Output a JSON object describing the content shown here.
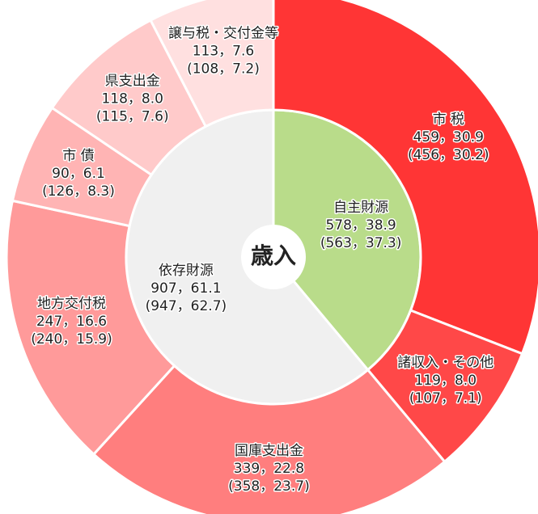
{
  "chart_data": {
    "type": "donut",
    "center_label": "歳入",
    "rings": [
      {
        "categories": [
          "自主財源",
          "依存財源"
        ],
        "values": [
          578,
          907
        ],
        "value_labels": [
          "578，38.9",
          "907，61.1"
        ],
        "prev_labels": [
          "(563，37.3)",
          "(947，62.7)"
        ],
        "colors": [
          "#b9dc8a",
          "#f0f0f0"
        ]
      },
      {
        "categories": [
          "市 税",
          "諸収入・その他",
          "国庫支出金",
          "地方交付税",
          "市 債",
          "県支出金",
          "譲与税・交付金等"
        ],
        "values": [
          459,
          119,
          339,
          247,
          90,
          118,
          113
        ],
        "value_labels": [
          "459，30.9",
          "119，8.0",
          "339，22.8",
          "247，16.6",
          "90，6.1",
          "118，8.0",
          "113，7.6"
        ],
        "prev_labels": [
          "(456，30.2)",
          "(107，7.1)",
          "(358，23.7)",
          "(240，15.9)",
          "(126，8.3)",
          "(115，7.6)",
          "(108，7.2)"
        ],
        "colors": [
          "#ff3535",
          "#ff4848",
          "#ff7e7e",
          "#ff9a9a",
          "#ffb4b4",
          "#ffcaca",
          "#ffe0e0"
        ]
      }
    ]
  }
}
